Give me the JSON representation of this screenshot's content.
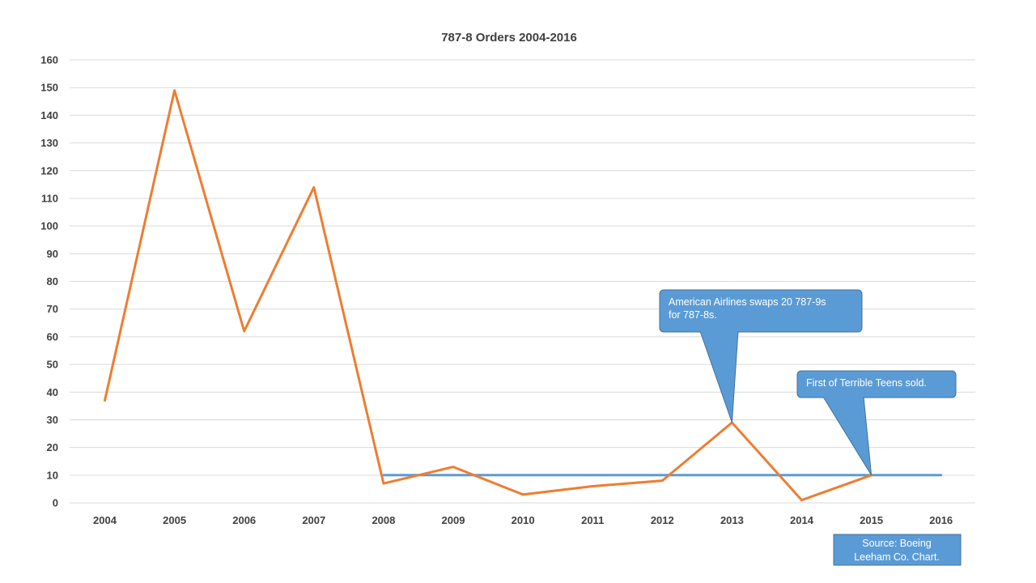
{
  "chart_data": {
    "type": "line",
    "title": "787-8 Orders 2004-2016",
    "xlabel": "",
    "ylabel": "",
    "categories": [
      "2004",
      "2005",
      "2006",
      "2007",
      "2008",
      "2009",
      "2010",
      "2011",
      "2012",
      "2013",
      "2014",
      "2015",
      "2016"
    ],
    "ylim": [
      0,
      160
    ],
    "yticks": [
      "0",
      "10",
      "20",
      "30",
      "40",
      "50",
      "60",
      "70",
      "80",
      "90",
      "100",
      "110",
      "120",
      "130",
      "140",
      "150",
      "160"
    ],
    "grid": true,
    "legend": "none",
    "series": [
      {
        "color": "#ed7d31",
        "values": [
          37,
          149,
          62,
          114,
          7,
          13,
          3,
          6,
          8,
          29,
          1,
          10,
          null
        ]
      },
      {
        "color": "#5b9bd5",
        "values": [
          null,
          null,
          null,
          null,
          10,
          10,
          10,
          10,
          10,
          10,
          10,
          10,
          10
        ]
      }
    ],
    "annotations": [
      {
        "lines": [
          "American Airlines swaps 20 787-9s",
          "for 787-8s."
        ],
        "points_to": {
          "x": "2013",
          "y": 29
        }
      },
      {
        "lines": [
          "First of Terrible Teens sold."
        ],
        "points_to": {
          "x": "2015",
          "y": 10
        }
      }
    ],
    "source_box": {
      "lines": [
        "Source:  Boeing",
        "Leeham Co. Chart."
      ]
    }
  },
  "colors": {
    "orange_series": "#ed7d31",
    "blue_series": "#5b9bd5",
    "callout_fill": "#5b9bd5",
    "callout_border": "#41719c",
    "gridline": "#d9d9d9",
    "text": "#404040"
  }
}
